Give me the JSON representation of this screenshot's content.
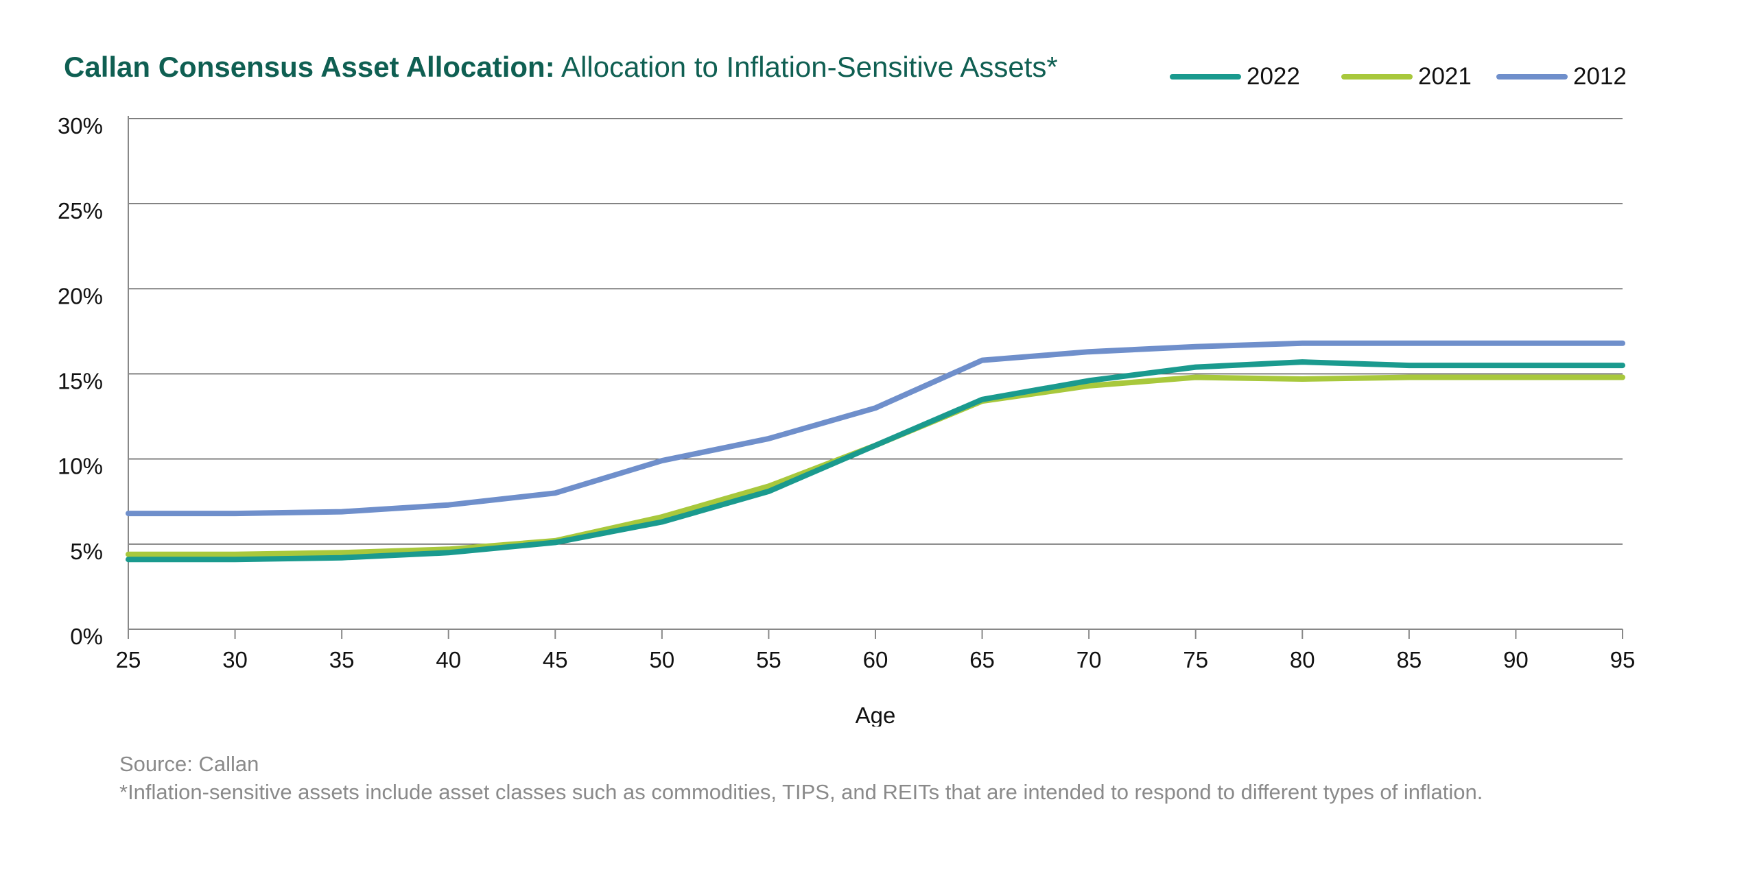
{
  "header": {
    "title_bold": "Callan Consensus Asset Allocation:",
    "title_rest": " Allocation to Inflation-Sensitive Assets*"
  },
  "legend": [
    {
      "label": "2022",
      "color": "#1a9a8e"
    },
    {
      "label": "2021",
      "color": "#a8c83c"
    },
    {
      "label": "2012",
      "color": "#6f8fcb"
    }
  ],
  "footer": {
    "source": "Source: Callan",
    "note": "*Inflation-sensitive assets include asset classes such as commodities, TIPS, and REITs that are intended to respond to different types of inflation."
  },
  "chart_data": {
    "type": "line",
    "title": "Callan Consensus Asset Allocation: Allocation to Inflation-Sensitive Assets*",
    "xlabel": "Age",
    "ylabel": "",
    "xlim": [
      25,
      95
    ],
    "ylim": [
      0,
      30
    ],
    "x_ticks": [
      25,
      30,
      35,
      40,
      45,
      50,
      55,
      60,
      65,
      70,
      75,
      80,
      85,
      90,
      95
    ],
    "y_ticks": [
      "0%",
      "5%",
      "10%",
      "15%",
      "20%",
      "25%",
      "30%"
    ],
    "y_tick_values": [
      0,
      5,
      10,
      15,
      20,
      25,
      30
    ],
    "grid": "horizontal",
    "legend_position": "top-right",
    "x": [
      25,
      30,
      35,
      40,
      45,
      50,
      55,
      60,
      65,
      70,
      75,
      80,
      85,
      90,
      95
    ],
    "series": [
      {
        "name": "2012",
        "color": "#6f8fcb",
        "values": [
          6.8,
          6.8,
          6.9,
          7.3,
          8.0,
          9.9,
          11.2,
          13.0,
          15.8,
          16.3,
          16.6,
          16.8,
          16.8,
          16.8,
          16.8
        ]
      },
      {
        "name": "2021",
        "color": "#a8c83c",
        "values": [
          4.4,
          4.4,
          4.5,
          4.7,
          5.2,
          6.6,
          8.4,
          10.8,
          13.4,
          14.3,
          14.8,
          14.7,
          14.8,
          14.8,
          14.8
        ]
      },
      {
        "name": "2022",
        "color": "#1a9a8e",
        "values": [
          4.1,
          4.1,
          4.2,
          4.5,
          5.1,
          6.3,
          8.1,
          10.8,
          13.5,
          14.6,
          15.4,
          15.7,
          15.5,
          15.5,
          15.5
        ]
      }
    ]
  }
}
